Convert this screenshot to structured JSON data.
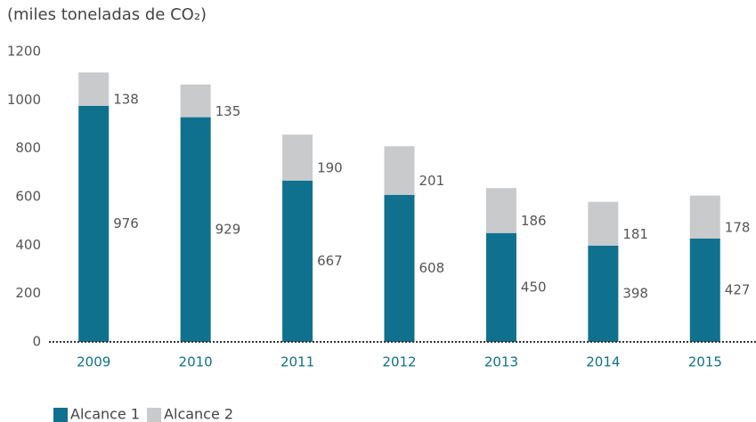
{
  "chart_data": {
    "type": "stacked_bar",
    "subtitle": "(miles toneladas de CO₂)",
    "categories": [
      "2009",
      "2010",
      "2011",
      "2012",
      "2013",
      "2014",
      "2015"
    ],
    "series": [
      {
        "name": "Alcance 1",
        "color": "#0f718e",
        "values": [
          976,
          929,
          667,
          608,
          450,
          398,
          427
        ]
      },
      {
        "name": "Alcance 2",
        "color": "#c8cacc",
        "values": [
          138,
          135,
          190,
          201,
          186,
          181,
          178
        ]
      }
    ],
    "ylim": [
      0,
      1200
    ],
    "yticks": [
      0,
      200,
      400,
      600,
      800,
      1000,
      1200
    ],
    "legend": "bottom-left"
  }
}
